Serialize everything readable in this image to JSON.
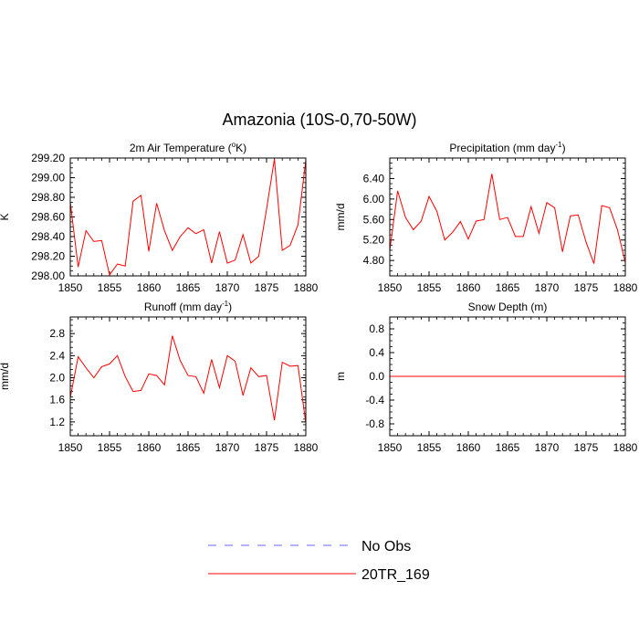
{
  "figure_title": "Amazonia (10S-0,70-50W)",
  "legend": {
    "no_obs_label": "No Obs",
    "no_obs_color": "#6666ff",
    "model_label": "20TR_169",
    "model_color": "#ff0000"
  },
  "chart_data": [
    {
      "type": "line",
      "title_main": "2m Air Temperature (",
      "title_sup": "o",
      "title_tail": "K)",
      "ylabel": "K",
      "xlim": [
        1850,
        1880
      ],
      "ylim": [
        298.0,
        299.2
      ],
      "xticks": [
        "1850",
        "1855",
        "1860",
        "1865",
        "1870",
        "1875",
        "1880"
      ],
      "yticks": [
        "298.00",
        "298.20",
        "298.40",
        "298.60",
        "298.80",
        "299.00",
        "299.20"
      ],
      "x": [
        1850,
        1851,
        1852,
        1853,
        1854,
        1855,
        1856,
        1857,
        1858,
        1859,
        1860,
        1861,
        1862,
        1863,
        1864,
        1865,
        1866,
        1867,
        1868,
        1869,
        1870,
        1871,
        1872,
        1873,
        1874,
        1875,
        1876,
        1877,
        1878,
        1879,
        1880
      ],
      "series": [
        {
          "name": "20TR_169",
          "values": [
            298.75,
            298.09,
            298.46,
            298.35,
            298.36,
            298.01,
            298.12,
            298.1,
            298.76,
            298.82,
            298.25,
            298.74,
            298.46,
            298.26,
            298.4,
            298.49,
            298.43,
            298.47,
            298.13,
            298.45,
            298.13,
            298.16,
            298.42,
            298.13,
            298.2,
            298.68,
            299.19,
            298.26,
            298.31,
            298.52,
            299.18
          ]
        }
      ]
    },
    {
      "type": "line",
      "title_main": "Precipitation (mm day",
      "title_sup": "-1",
      "title_tail": ")",
      "ylabel": "mm/d",
      "xlim": [
        1850,
        1880
      ],
      "ylim": [
        4.5,
        6.8
      ],
      "xticks": [
        "1850",
        "1855",
        "1860",
        "1865",
        "1870",
        "1875",
        "1880"
      ],
      "yticks": [
        "4.80",
        "5.20",
        "5.60",
        "6.00",
        "6.40"
      ],
      "x": [
        1850,
        1851,
        1852,
        1853,
        1854,
        1855,
        1856,
        1857,
        1858,
        1859,
        1860,
        1861,
        1862,
        1863,
        1864,
        1865,
        1866,
        1867,
        1868,
        1869,
        1870,
        1871,
        1872,
        1873,
        1874,
        1875,
        1876,
        1877,
        1878,
        1879,
        1880
      ],
      "series": [
        {
          "name": "20TR_169",
          "values": [
            5.0,
            6.16,
            5.64,
            5.4,
            5.57,
            6.05,
            5.76,
            5.2,
            5.35,
            5.56,
            5.22,
            5.57,
            5.6,
            6.49,
            5.6,
            5.64,
            5.27,
            5.27,
            5.85,
            5.33,
            5.93,
            5.83,
            4.97,
            5.67,
            5.69,
            5.16,
            4.74,
            5.87,
            5.83,
            5.4,
            4.76
          ]
        }
      ]
    },
    {
      "type": "line",
      "title_main": "Runoff (mm day",
      "title_sup": "-1",
      "title_tail": ")",
      "ylabel": "mm/d",
      "xlim": [
        1850,
        1880
      ],
      "ylim": [
        0.95,
        3.1
      ],
      "xticks": [
        "1850",
        "1855",
        "1860",
        "1865",
        "1870",
        "1875",
        "1880"
      ],
      "yticks": [
        "1.2",
        "1.6",
        "2.0",
        "2.4",
        "2.8"
      ],
      "x": [
        1850,
        1851,
        1852,
        1853,
        1854,
        1855,
        1856,
        1857,
        1858,
        1859,
        1860,
        1861,
        1862,
        1863,
        1864,
        1865,
        1866,
        1867,
        1868,
        1869,
        1870,
        1871,
        1872,
        1873,
        1874,
        1875,
        1876,
        1877,
        1878,
        1879,
        1880
      ],
      "series": [
        {
          "name": "20TR_169",
          "values": [
            1.64,
            2.38,
            2.18,
            2.0,
            2.2,
            2.25,
            2.4,
            2.02,
            1.75,
            1.77,
            2.07,
            2.04,
            1.87,
            2.76,
            2.31,
            2.04,
            2.02,
            1.72,
            2.33,
            1.82,
            2.4,
            2.3,
            1.68,
            2.18,
            2.02,
            2.04,
            1.23,
            2.28,
            2.21,
            2.22,
            1.18
          ]
        }
      ]
    },
    {
      "type": "line",
      "title_main": "Snow Depth (m)",
      "title_sup": "",
      "title_tail": "",
      "ylabel": "m",
      "xlim": [
        1850,
        1880
      ],
      "ylim": [
        -1.0,
        1.0
      ],
      "xticks": [
        "1850",
        "1855",
        "1860",
        "1865",
        "1870",
        "1875",
        "1880"
      ],
      "yticks": [
        "-0.8",
        "-0.4",
        "0.0",
        "0.4",
        "0.8"
      ],
      "x": [
        1850,
        1880
      ],
      "series": [
        {
          "name": "20TR_169",
          "values": [
            0.0,
            0.0
          ]
        }
      ]
    }
  ]
}
